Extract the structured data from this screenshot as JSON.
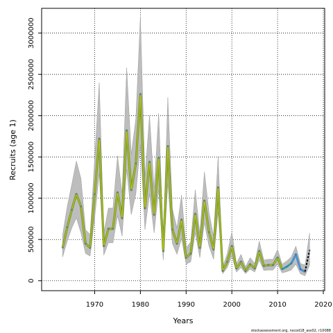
{
  "chart_data": {
    "type": "line",
    "title": "",
    "xlabel": "Years",
    "ylabel": "Recruits (age 1)",
    "xlim": [
      1958.4,
      2020.3
    ],
    "ylim": [
      -120000,
      3300000
    ],
    "x_ticks": [
      1970,
      1980,
      1990,
      2000,
      2010,
      2020
    ],
    "y_ticks": [
      0,
      500000,
      1000000,
      1500000,
      2000000,
      2500000,
      3000000
    ],
    "grid": true,
    "grid_style": "dotted",
    "footnote": "stockassessment.org, nscod18_ass02, r10088",
    "colors": {
      "band": "#bdbdbd",
      "band_edge": "#999999",
      "line_main": "#6f9a2f",
      "line_highlight": "#c8c21a",
      "recent_blue": "#4a90c8",
      "recent_teal": "#2aa198",
      "last_point": "#111111"
    },
    "series": [
      {
        "x": [
          1963,
          1964,
          1965,
          1966,
          1967,
          1968,
          1969,
          1970,
          1971,
          1972,
          1973,
          1974,
          1975,
          1976,
          1977,
          1978,
          1979,
          1980,
          1981,
          1982,
          1983,
          1984,
          1985,
          1986,
          1987,
          1988,
          1989,
          1990,
          1991,
          1992,
          1993,
          1994,
          1995,
          1996,
          1997,
          1998,
          1999,
          2000,
          2001,
          2002,
          2003,
          2004,
          2005,
          2006,
          2007,
          2008,
          2009,
          2010,
          2011,
          2012,
          2013,
          2014,
          2015,
          2016,
          2017
        ],
        "values": [
          400000,
          650000,
          860000,
          1050000,
          900000,
          450000,
          400000,
          1050000,
          1720000,
          420000,
          630000,
          630000,
          1070000,
          760000,
          1820000,
          1100000,
          1420000,
          2260000,
          880000,
          1440000,
          800000,
          1490000,
          360000,
          1630000,
          620000,
          450000,
          740000,
          280000,
          330000,
          810000,
          400000,
          970000,
          590000,
          380000,
          1130000,
          120000,
          230000,
          420000,
          150000,
          230000,
          120000,
          200000,
          150000,
          360000,
          180000,
          190000,
          190000,
          280000,
          140000,
          170000,
          210000,
          320000,
          140000,
          110000,
          370000
        ],
        "lower": [
          290000,
          480000,
          640000,
          760000,
          580000,
          330000,
          300000,
          760000,
          1300000,
          310000,
          460000,
          460000,
          790000,
          540000,
          1350000,
          800000,
          1050000,
          1650000,
          620000,
          1050000,
          580000,
          1100000,
          250000,
          1180000,
          450000,
          320000,
          510000,
          200000,
          230000,
          580000,
          280000,
          700000,
          420000,
          260000,
          830000,
          85000,
          160000,
          300000,
          105000,
          160000,
          85000,
          140000,
          105000,
          250000,
          125000,
          130000,
          130000,
          200000,
          95000,
          110000,
          130000,
          200000,
          85000,
          60000,
          190000
        ],
        "upper": [
          560000,
          900000,
          1170000,
          1450000,
          1240000,
          620000,
          560000,
          1480000,
          2400000,
          580000,
          880000,
          880000,
          1510000,
          1060000,
          2580000,
          1530000,
          1960000,
          3200000,
          1260000,
          2000000,
          1120000,
          2030000,
          520000,
          2220000,
          870000,
          640000,
          1040000,
          400000,
          470000,
          1100000,
          570000,
          1320000,
          830000,
          540000,
          1500000,
          170000,
          330000,
          590000,
          210000,
          320000,
          170000,
          280000,
          210000,
          480000,
          250000,
          260000,
          260000,
          380000,
          200000,
          240000,
          290000,
          420000,
          210000,
          190000,
          580000
        ]
      }
    ]
  }
}
